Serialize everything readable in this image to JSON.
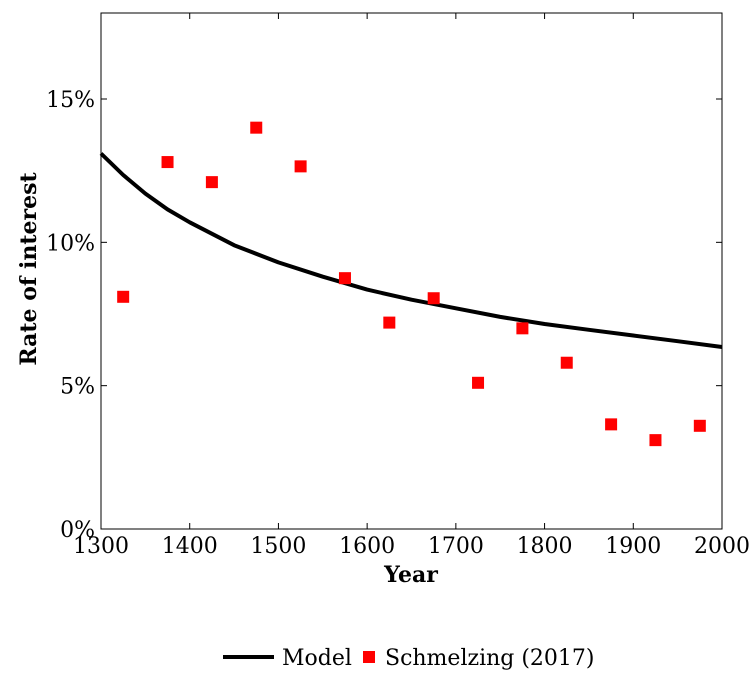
{
  "chart_data": {
    "type": "scatter",
    "xlabel": "Year",
    "ylabel": "Rate of interest",
    "xlim": [
      1300,
      2000
    ],
    "ylim": [
      0,
      18
    ],
    "x_ticks": [
      1300,
      1400,
      1500,
      1600,
      1700,
      1800,
      1900,
      2000
    ],
    "y_ticks": [
      0,
      5,
      10,
      15
    ],
    "y_tick_labels": [
      "0%",
      "5%",
      "10%",
      "15%"
    ],
    "grid": false,
    "legend_position": "bottom",
    "series": [
      {
        "name": "Model",
        "kind": "line",
        "color": "#000000",
        "x": [
          1300,
          1325,
          1350,
          1375,
          1400,
          1450,
          1500,
          1550,
          1600,
          1650,
          1700,
          1750,
          1800,
          1850,
          1900,
          1950,
          2000
        ],
        "y": [
          13.1,
          12.35,
          11.7,
          11.15,
          10.7,
          9.9,
          9.3,
          8.8,
          8.35,
          8.0,
          7.7,
          7.4,
          7.15,
          6.95,
          6.75,
          6.55,
          6.35
        ]
      },
      {
        "name": "Schmelzing (2017)",
        "kind": "scatter",
        "marker": "square",
        "color": "#ff0000",
        "x": [
          1325,
          1375,
          1425,
          1475,
          1525,
          1575,
          1625,
          1675,
          1725,
          1775,
          1825,
          1875,
          1925,
          1975
        ],
        "y": [
          8.1,
          12.8,
          12.1,
          14.0,
          12.65,
          8.75,
          7.2,
          8.05,
          5.1,
          7.0,
          5.8,
          3.65,
          3.1,
          3.6
        ]
      }
    ]
  }
}
